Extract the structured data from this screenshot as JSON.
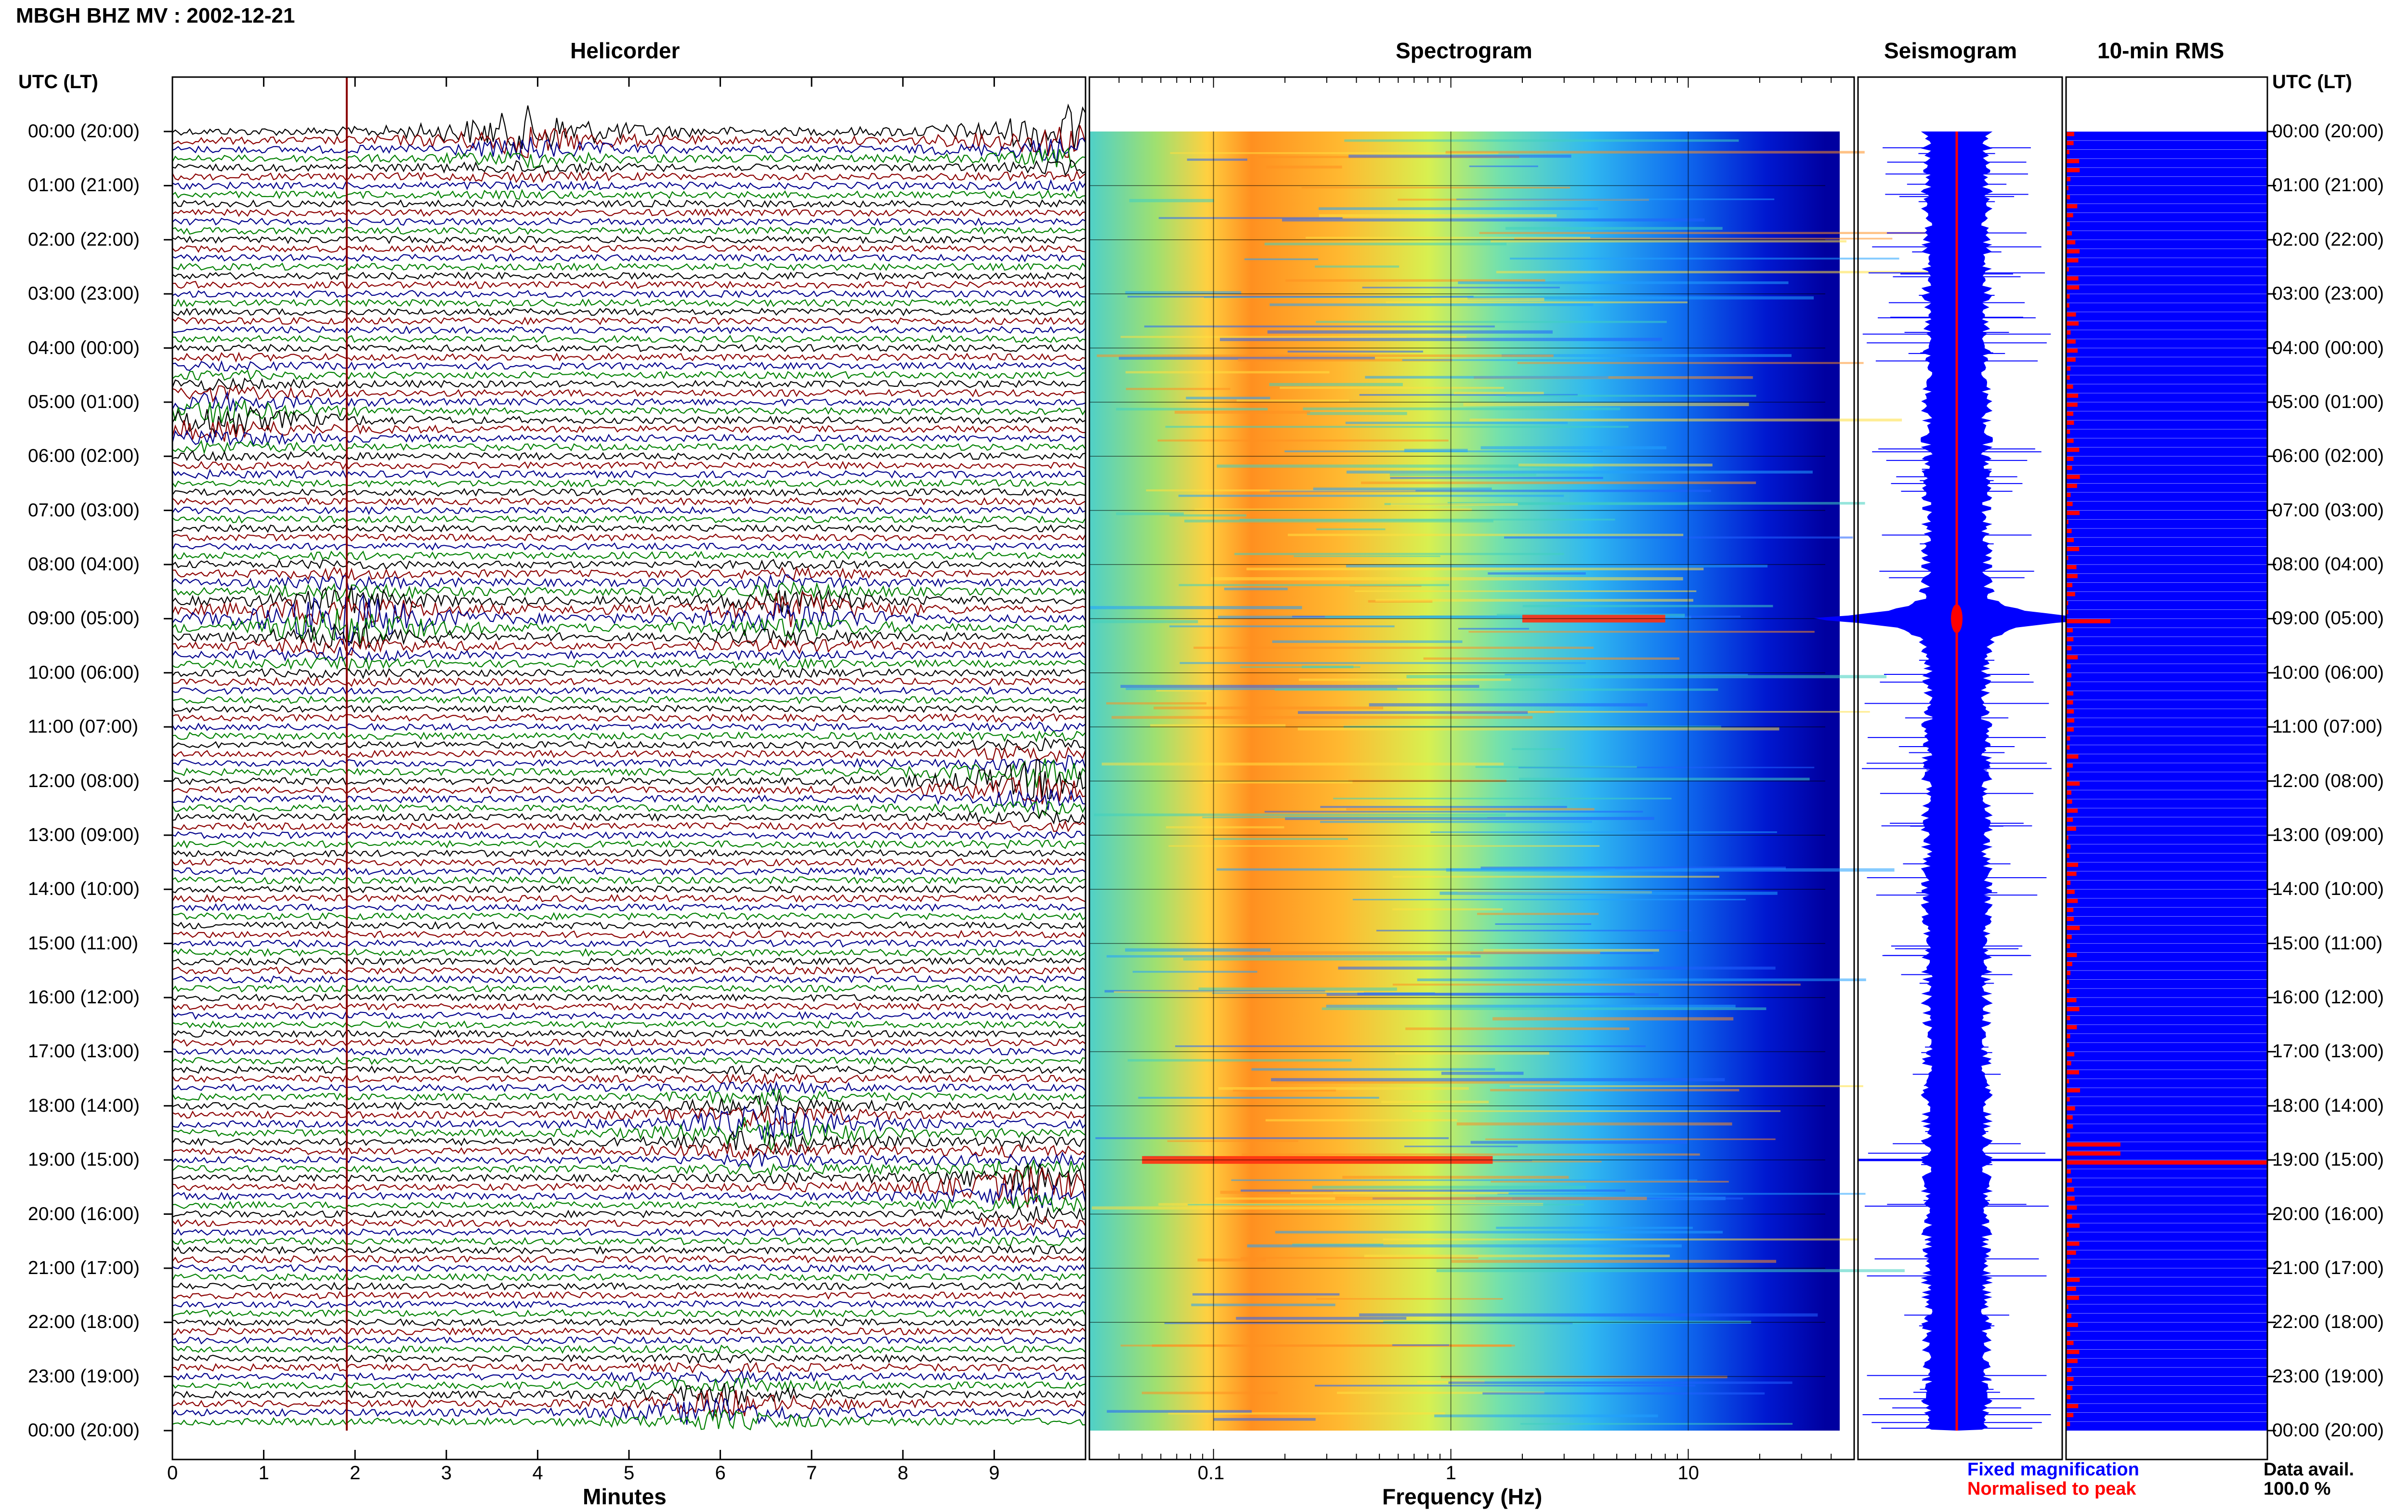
{
  "page_title": "MBGH BHZ MV : 2002-12-21",
  "panels": {
    "helicorder": "Helicorder",
    "spectrogram": "Spectrogram",
    "seismogram": "Seismogram",
    "rms": "10-min RMS"
  },
  "time_axis_title": "UTC (LT)",
  "time_labels": [
    "00:00 (20:00)",
    "01:00 (21:00)",
    "02:00 (22:00)",
    "03:00 (23:00)",
    "04:00 (00:00)",
    "05:00 (01:00)",
    "06:00 (02:00)",
    "07:00 (03:00)",
    "08:00 (04:00)",
    "09:00 (05:00)",
    "10:00 (06:00)",
    "11:00 (07:00)",
    "12:00 (08:00)",
    "13:00 (09:00)",
    "14:00 (10:00)",
    "15:00 (11:00)",
    "16:00 (12:00)",
    "17:00 (13:00)",
    "18:00 (14:00)",
    "19:00 (15:00)",
    "20:00 (16:00)",
    "21:00 (17:00)",
    "22:00 (18:00)",
    "23:00 (19:00)",
    "00:00 (20:00)"
  ],
  "helicorder_xlabel": "Minutes",
  "spectrogram_xlabel": "Frequency (Hz)",
  "legend": {
    "fixed": "Fixed magnification",
    "normalised": "Normalised to peak",
    "fixed_color": "#0000ff",
    "normalised_color": "#ff0000"
  },
  "data_avail": {
    "label": "Data avail.",
    "value": "100.0 %"
  },
  "colors": {
    "trace_cycle": [
      "#000000",
      "#8b0000",
      "#00008b",
      "#008000"
    ],
    "spectrogram_low": "#0000a0",
    "spectrogram_high": "#ff2000"
  },
  "chart_data": [
    {
      "type": "helicorder",
      "title": "Helicorder",
      "xlabel": "Minutes",
      "x_ticks": [
        "0",
        "1",
        "2",
        "3",
        "4",
        "5",
        "6",
        "7",
        "8",
        "9"
      ],
      "xlim": [
        0,
        10
      ],
      "ylim_hours": [
        0,
        24
      ],
      "line_minutes": 10,
      "trace_color_cycle": [
        "black",
        "darkred",
        "darkblue",
        "green"
      ],
      "notable_events": [
        {
          "hour": 0.0,
          "minute": 3.9,
          "amplitude": 0.8
        },
        {
          "hour": 0.0,
          "minute": 9.8,
          "amplitude": 0.9
        },
        {
          "hour": 5.3,
          "minute": 0.5,
          "amplitude": 0.6
        },
        {
          "hour": 8.9,
          "minute": 6.8,
          "amplitude": 0.7
        },
        {
          "hour": 9.0,
          "minute": 1.9,
          "amplitude": 1.0
        },
        {
          "hour": 12.0,
          "minute": 9.5,
          "amplitude": 0.7
        },
        {
          "hour": 18.4,
          "minute": 6.5,
          "amplitude": 0.8
        },
        {
          "hour": 19.5,
          "minute": 9.4,
          "amplitude": 0.7
        },
        {
          "hour": 23.6,
          "minute": 6.0,
          "amplitude": 0.6
        }
      ]
    },
    {
      "type": "heatmap",
      "title": "Spectrogram",
      "xlabel": "Frequency (Hz)",
      "x_scale": "log",
      "xlim": [
        0.03,
        50
      ],
      "x_ticks": [
        "0.1",
        "1",
        "10"
      ],
      "ylim_hours": [
        0,
        24
      ],
      "colormap": "jet",
      "peak_band_hz": [
        0.12,
        0.5
      ],
      "notable_rows": [
        {
          "hour": 9.0,
          "band_hz": [
            2,
            8
          ],
          "level": "high"
        },
        {
          "hour": 19.0,
          "band_hz": [
            0.05,
            1.5
          ],
          "level": "high"
        }
      ]
    },
    {
      "type": "line",
      "title": "Seismogram",
      "ylim_hours": [
        0,
        24
      ],
      "series": [
        {
          "name": "Fixed magnification",
          "color": "#0000ff"
        },
        {
          "name": "Normalised to peak",
          "color": "#ff0000"
        }
      ],
      "notable_events_hours": [
        9.0,
        19.0
      ]
    },
    {
      "type": "bar",
      "title": "10-min RMS",
      "ylim_hours": [
        0,
        24
      ],
      "bin_minutes": 10,
      "notable_peaks": [
        {
          "hour": 9.0,
          "relative_value": 0.22
        },
        {
          "hour": 18.75,
          "relative_value": 0.27
        },
        {
          "hour": 19.0,
          "relative_value": 1.0
        }
      ]
    }
  ]
}
